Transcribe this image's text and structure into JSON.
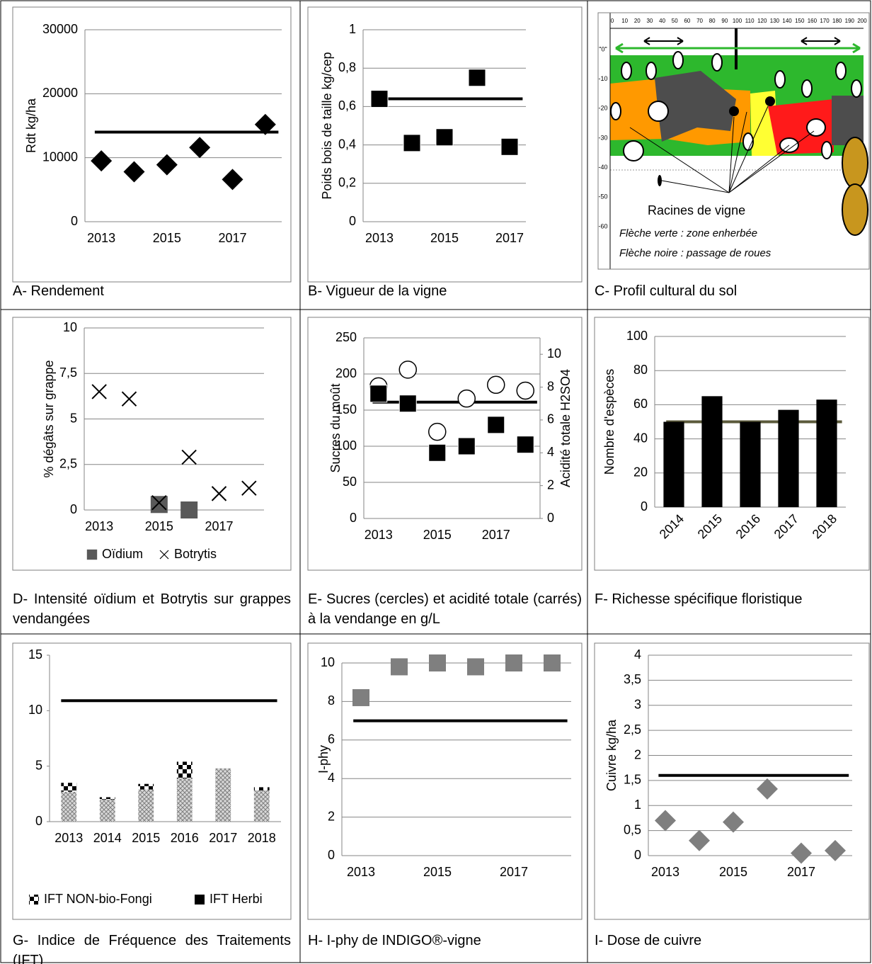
{
  "chart_data": [
    {
      "type": "scatter",
      "caption": "A- Rendement",
      "y_label": "Rdt kg/ha",
      "categories": [
        "2013",
        null,
        "2015",
        null,
        "2017",
        null
      ],
      "series": [
        {
          "color": "#000000",
          "marker": "diamond",
          "values": [
            9500,
            7800,
            8900,
            11600,
            6600,
            15200
          ]
        }
      ],
      "ylim": [
        0,
        30000
      ],
      "yticks": [
        0,
        10000,
        20000,
        30000
      ],
      "grid": true,
      "hline": {
        "value": 14000,
        "color": "#000000"
      }
    },
    {
      "type": "scatter",
      "caption": "B- Vigueur de la vigne",
      "y_label": "Poids  bois de taille kg/cep",
      "categories": [
        "2013",
        null,
        "2015",
        null,
        "2017"
      ],
      "series": [
        {
          "color": "#000000",
          "marker": "square",
          "values": [
            0.64,
            0.41,
            0.44,
            0.75,
            0.39
          ]
        }
      ],
      "ylim": [
        0,
        1
      ],
      "yticks": [
        0,
        {
          "value": 0.2,
          "label": "0,2"
        },
        {
          "value": 0.4,
          "label": "0,4"
        },
        {
          "value": 0.6,
          "label": "0,6"
        },
        {
          "value": 0.8,
          "label": "0,8"
        },
        1
      ],
      "grid": true,
      "hline": {
        "value": 0.64,
        "color": "#000000"
      }
    },
    {
      "type": "profile",
      "caption": "C- Profil cultural du sol",
      "xticks": [
        0,
        10,
        20,
        30,
        40,
        50,
        60,
        70,
        80,
        90,
        100,
        110,
        120,
        130,
        140,
        150,
        160,
        170,
        180,
        190,
        200
      ],
      "yticks": [
        {
          "value": 0,
          "label": "\"0\""
        },
        -10,
        -20,
        -30,
        -40,
        -50,
        -60
      ],
      "labels": [
        "Racines de vigne",
        "Flèche verte : zone enherbée",
        "Flèche noire : passage de roues"
      ]
    },
    {
      "type": "scatter",
      "caption": "D- Intensité oïdium et Botrytis sur grappes vendangées",
      "y_label": "% dégâts sur grappe",
      "categories": [
        "2013",
        null,
        "2015",
        null,
        "2017",
        null
      ],
      "series": [
        {
          "name": "Oïdium",
          "color": "#595959",
          "marker": "square",
          "values": [
            null,
            null,
            0.3,
            0,
            null,
            null
          ]
        },
        {
          "name": "Botrytis",
          "color": "#000000",
          "marker": "x",
          "values": [
            6.5,
            6.1,
            0.4,
            2.9,
            0.9,
            1.2
          ]
        }
      ],
      "ylim": [
        0,
        10
      ],
      "yticks": [
        0,
        {
          "value": 2.5,
          "label": "2,5"
        },
        5,
        {
          "value": 7.5,
          "label": "7,5"
        },
        10
      ],
      "grid": true,
      "legend": "bottom"
    },
    {
      "type": "scatter",
      "caption": "E- Sucres (cercles) et acidité totale (carrés) à la vendange en g/L",
      "y_label": "Sucres du moût",
      "y2_label": "Acidité totale H2SO4",
      "categories": [
        "2013",
        null,
        "2015",
        null,
        "2017",
        null
      ],
      "series": [
        {
          "color": "#000000",
          "marker": "circle",
          "values": [
            183,
            206,
            120,
            166,
            185,
            177
          ]
        },
        {
          "color": "#000000",
          "marker": "square",
          "axis": "y2",
          "values": [
            7.6,
            7.0,
            4.0,
            4.4,
            5.7,
            4.5
          ]
        }
      ],
      "ylim": [
        0,
        250
      ],
      "yticks": [
        0,
        50,
        100,
        150,
        200,
        250
      ],
      "y2lim": [
        0,
        11
      ],
      "y2ticks": [
        0,
        2,
        4,
        6,
        8,
        10
      ],
      "grid": true,
      "hline": {
        "value": 161,
        "color": "#000000"
      }
    },
    {
      "type": "bar",
      "caption": "F- Richesse spécifique floristique",
      "y_label": "Nombre d'espèces",
      "categories": [
        "2014",
        "2015",
        "2016",
        "2017",
        "2018"
      ],
      "values": [
        50,
        65,
        50,
        57,
        63
      ],
      "color": "#000000",
      "ylim": [
        0,
        100
      ],
      "yticks": [
        0,
        20,
        40,
        60,
        80,
        100
      ],
      "grid": true,
      "xtick_rotation": -45,
      "hline": {
        "value": 50,
        "color": "#5b5a3b"
      }
    },
    {
      "type": "stacked_bar",
      "caption": "G- Indice de Fréquence des Traitements (IFT)",
      "categories": [
        "2013",
        "2014",
        "2015",
        "2016",
        "2017",
        "2018"
      ],
      "series": [
        {
          "pattern": "crosshatch",
          "values": [
            2.7,
            2.0,
            2.9,
            3.9,
            4.8,
            2.8
          ]
        },
        {
          "name": "IFT NON-bio-Fongi",
          "pattern": "checker",
          "values": [
            0.8,
            0.2,
            0.5,
            1.5,
            0,
            0.3
          ]
        },
        {
          "name": "IFT Herbi",
          "color": "#000000",
          "values": [
            0,
            0,
            0,
            0,
            0,
            0
          ]
        }
      ],
      "ylim": [
        0,
        15
      ],
      "yticks": [
        0,
        5,
        10,
        15
      ],
      "grid": false,
      "legend": "bottom",
      "hline": {
        "value": 10.9,
        "color": "#000000"
      }
    },
    {
      "type": "scatter",
      "caption": "H- I-phy de INDIGO®-vigne",
      "y_label": "I-phy",
      "categories": [
        "2013",
        null,
        "2015",
        null,
        "2017",
        null
      ],
      "series": [
        {
          "color": "#7f7f7f",
          "marker": "square",
          "values": [
            8.2,
            9.8,
            10,
            9.8,
            10,
            10
          ]
        }
      ],
      "ylim": [
        0,
        10
      ],
      "yticks": [
        0,
        2,
        4,
        6,
        8,
        10
      ],
      "grid": true,
      "hline": {
        "value": 7,
        "color": "#000000"
      }
    },
    {
      "type": "scatter",
      "caption": "I- Dose de cuivre",
      "y_label": "Cuivre kg/ha",
      "categories": [
        "2013",
        null,
        "2015",
        null,
        "2017",
        null
      ],
      "series": [
        {
          "color": "#7f7f7f",
          "marker": "diamond",
          "values": [
            0.7,
            0.3,
            0.67,
            1.33,
            0.05,
            0.1
          ]
        }
      ],
      "ylim": [
        0,
        4
      ],
      "yticks": [
        0,
        {
          "value": 0.5,
          "label": "0,5"
        },
        1,
        {
          "value": 1.5,
          "label": "1,5"
        },
        2,
        {
          "value": 2.5,
          "label": "2,5"
        },
        3,
        {
          "value": 3.5,
          "label": "3,5"
        },
        4
      ],
      "grid": true,
      "hline": {
        "value": 1.6,
        "color": "#000000"
      }
    }
  ]
}
